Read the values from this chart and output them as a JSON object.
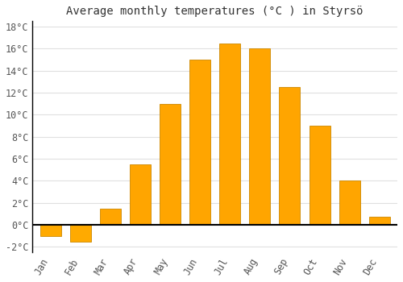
{
  "title": "Average monthly temperatures (°C ) in Styrsö",
  "months": [
    "Jan",
    "Feb",
    "Mar",
    "Apr",
    "May",
    "Jun",
    "Jul",
    "Aug",
    "Sep",
    "Oct",
    "Nov",
    "Dec"
  ],
  "values": [
    -1.0,
    -1.5,
    1.5,
    5.5,
    11.0,
    15.0,
    16.5,
    16.0,
    12.5,
    9.0,
    4.0,
    0.7
  ],
  "bar_color_positive": "#FFA500",
  "bar_color_negative": "#FFAA00",
  "bar_edge_color": "#CC8800",
  "ylim": [
    -2.5,
    18.5
  ],
  "yticks": [
    -2,
    0,
    2,
    4,
    6,
    8,
    10,
    12,
    14,
    16,
    18
  ],
  "background_color": "#ffffff",
  "grid_color": "#e0e0e0",
  "title_fontsize": 10,
  "tick_fontsize": 8.5,
  "zero_line_color": "#000000",
  "bar_width": 0.7
}
